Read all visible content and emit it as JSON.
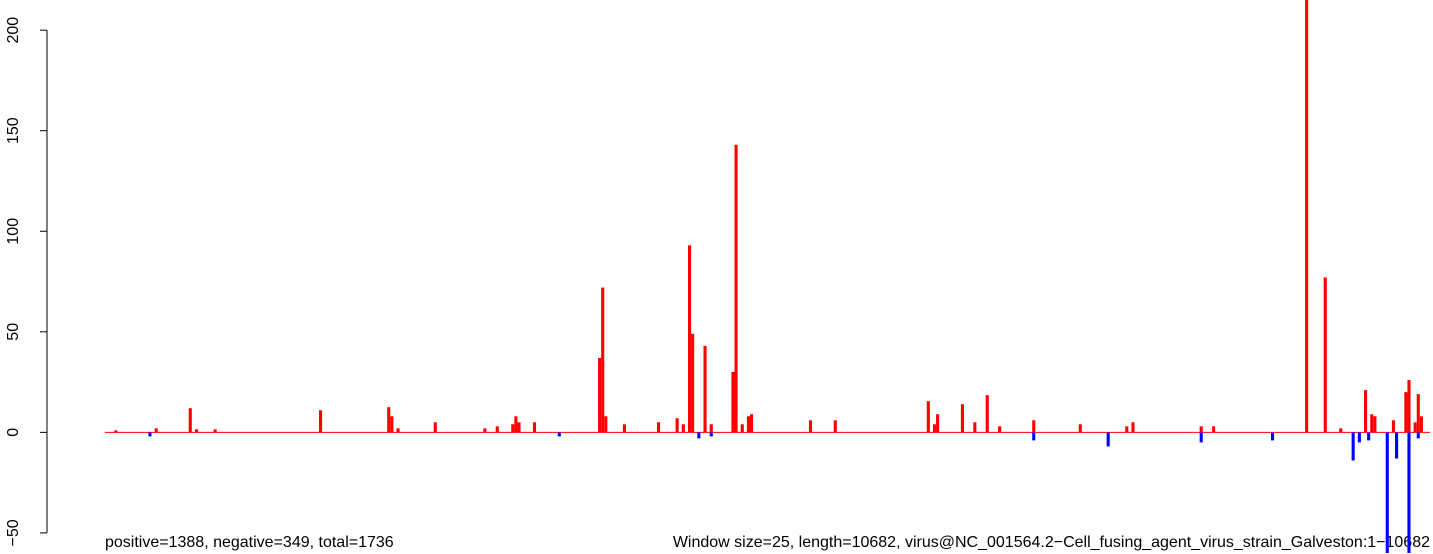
{
  "chart_data": {
    "type": "bar",
    "footer_left": "positive=1388, negative=349, total=1736",
    "footer_right": "Window size=25, length=10682, virus@NC_001564.2−Cell_fusing_agent_virus_strain_Galveston:1−10682",
    "window": 25,
    "xlim": [
      0,
      10682
    ],
    "ylim": [
      -60,
      215
    ],
    "yticks": [
      {
        "value": -50,
        "label": "−50"
      },
      0,
      50,
      100,
      150,
      200
    ],
    "series": [
      {
        "color": "#ff0000",
        "x": [
          75,
          400,
          675,
          725,
          875,
          1725,
          2275,
          2300,
          2350,
          2650,
          3050,
          3150,
          3275,
          3300,
          3325,
          3450,
          3975,
          4000,
          4025,
          4175,
          4450,
          4600,
          4650,
          4700,
          4725,
          4825,
          4875,
          5050,
          5075,
          5125,
          5175,
          5200,
          5675,
          5875,
          6625,
          6675,
          6700,
          6900,
          7000,
          7100,
          7200,
          7475,
          7850,
          8225,
          8275,
          8825,
          8925,
          9675,
          9825,
          9950,
          10150,
          10200,
          10225,
          10375,
          10475,
          10500,
          10550,
          10575,
          10600
        ],
        "values": [
          1,
          2,
          12,
          1.5,
          1.5,
          11,
          12.5,
          8,
          2,
          5,
          2,
          3,
          4,
          8,
          5,
          5,
          37,
          72,
          8,
          4,
          5,
          7,
          4,
          93,
          49,
          43,
          4,
          30,
          143,
          4,
          8,
          9,
          6,
          6,
          15.5,
          4,
          9,
          14,
          5,
          18.5,
          3,
          6,
          4,
          3,
          5,
          3,
          3,
          215,
          77,
          2,
          21,
          9,
          8,
          6,
          20,
          26,
          5,
          19,
          8
        ]
      },
      {
        "color": "#0000ff",
        "x": [
          350,
          3650,
          4775,
          4875,
          7475,
          8075,
          8825,
          9400,
          10050,
          10100,
          10175,
          10325,
          10400,
          10500,
          10575
        ],
        "values": [
          -2,
          -2,
          -3,
          -2,
          -4,
          -7,
          -5,
          -4,
          -14,
          -5,
          -4,
          -60,
          -13,
          -60,
          -3
        ]
      }
    ]
  }
}
